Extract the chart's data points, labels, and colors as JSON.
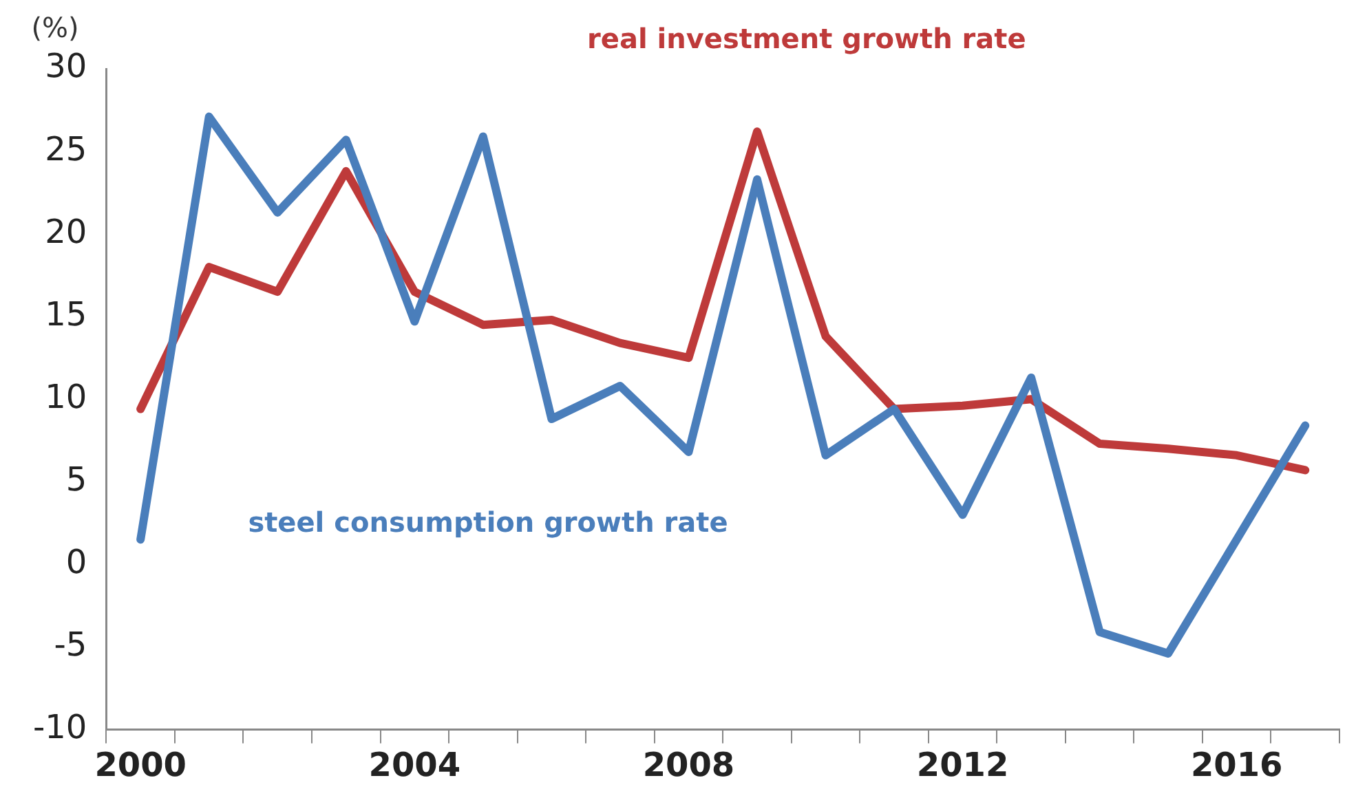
{
  "chart_data": {
    "type": "line",
    "ylabel": "(%)",
    "categories": [
      "2000",
      null,
      null,
      null,
      "2004",
      null,
      null,
      null,
      "2008",
      null,
      null,
      null,
      "2012",
      null,
      null,
      null,
      "2016",
      null
    ],
    "series": [
      {
        "name": "steel consumption growth rate",
        "color": "#4a7ebb",
        "values": [
          1.5,
          27.1,
          21.3,
          25.7,
          14.7,
          25.9,
          8.8,
          10.8,
          6.8,
          23.3,
          6.6,
          9.4,
          3.0,
          11.3,
          -4.1,
          -5.4,
          1.5,
          8.4
        ]
      },
      {
        "name": "real investment growth rate",
        "color": "#be3a3a",
        "values": [
          9.4,
          18.0,
          16.5,
          23.8,
          16.5,
          14.5,
          14.8,
          13.4,
          12.5,
          26.2,
          13.8,
          9.4,
          9.6,
          10.0,
          7.3,
          7.0,
          6.6,
          5.7
        ]
      }
    ],
    "ylim": [
      -10,
      30
    ],
    "yticks": [
      -10,
      -5,
      0,
      5,
      10,
      15,
      20,
      25,
      30
    ],
    "grid": false,
    "legend": false,
    "marker": "none",
    "line_style": "solid"
  }
}
